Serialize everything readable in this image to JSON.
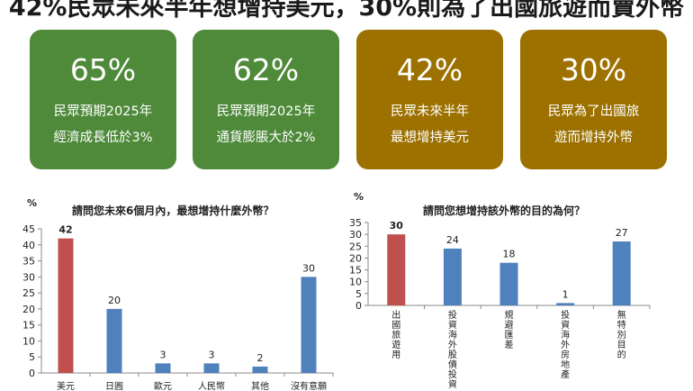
{
  "headline": "42%民眾未來半年想增持美元，30%則為了出國旅遊而賣外幣",
  "cards": [
    {
      "value": "65%",
      "line1": "民眾預期2025年",
      "line2": "經濟成長低於3%",
      "color": "#4e8a3a"
    },
    {
      "value": "62%",
      "line1": "民眾預期2025年",
      "line2": "通貨膨脹大於2%",
      "color": "#4e8a3a"
    },
    {
      "value": "42%",
      "line1": "民眾未來半年",
      "line2": "最想增持美元",
      "color": "#9c7100"
    },
    {
      "value": "30%",
      "line1": "民眾為了出國旅",
      "line2": "遊而增持外幣",
      "color": "#9c7100"
    }
  ],
  "chart_data": [
    {
      "type": "bar",
      "title": "請問您未來6個月內，最想增持什麼外幣？",
      "unit": "%",
      "categories": [
        "美元",
        "日圓",
        "歐元",
        "人民幣",
        "其他",
        "沒有意願"
      ],
      "values": [
        42,
        20,
        3,
        3,
        2,
        30
      ],
      "highlight_index": 0,
      "highlight_color": "#c0504d",
      "bar_color": "#4f81bd",
      "ylim": [
        0,
        45
      ],
      "yticks": [
        0,
        5,
        10,
        15,
        20,
        25,
        30,
        35,
        40,
        45
      ],
      "grid": false
    },
    {
      "type": "bar",
      "title": "請問您想增持該外幣的目的為何？",
      "unit": "%",
      "categories": [
        "出國旅遊用",
        "投資海外股債投資",
        "規避匯差",
        "投資海外房地產",
        "無特別目的"
      ],
      "values": [
        30,
        24,
        18,
        1,
        27
      ],
      "highlight_index": 0,
      "highlight_color": "#c0504d",
      "bar_color": "#4f81bd",
      "ylim": [
        0,
        35
      ],
      "yticks": [
        0,
        5,
        10,
        15,
        20,
        25,
        30,
        35
      ],
      "grid": false
    }
  ]
}
